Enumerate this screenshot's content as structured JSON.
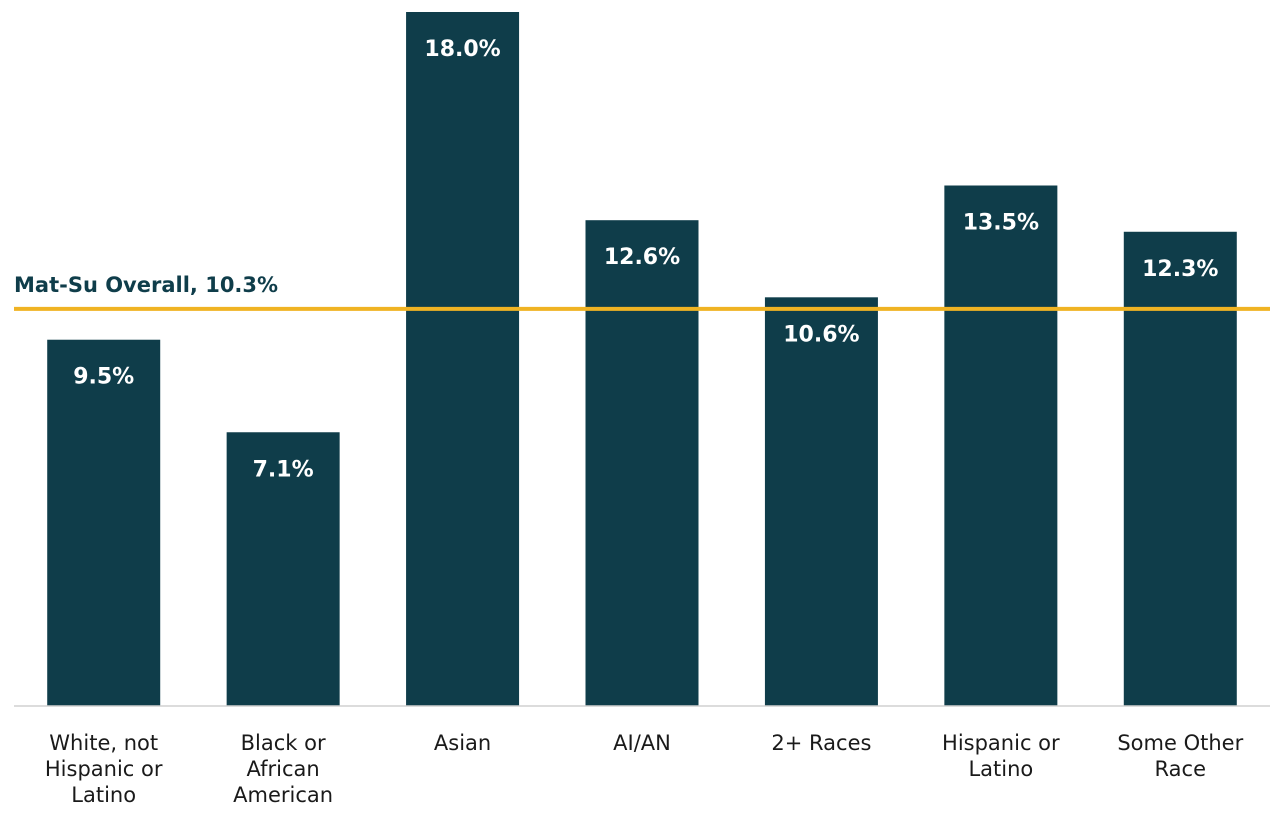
{
  "chart_data": {
    "type": "bar",
    "categories": [
      "White, not Hispanic or Latino",
      "Black or African American",
      "Asian",
      "AI/AN",
      "2+ Races",
      "Hispanic or Latino",
      "Some Other Race"
    ],
    "values": [
      9.5,
      7.1,
      18.0,
      12.6,
      10.6,
      13.5,
      12.3
    ],
    "value_labels": [
      "9.5%",
      "7.1%",
      "18.0%",
      "12.6%",
      "10.6%",
      "13.5%",
      "12.3%"
    ],
    "color": "#0f3d4a",
    "ylim": [
      0,
      18
    ],
    "reference_line": {
      "value": 10.3,
      "label": "Mat-Su Overall, 10.3%",
      "color": "#f0b323"
    }
  }
}
